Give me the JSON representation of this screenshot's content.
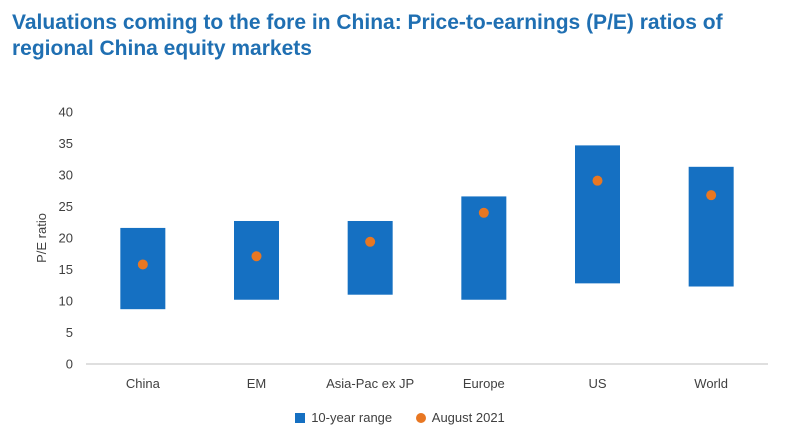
{
  "chart_data": {
    "type": "bar",
    "title": "Valuations coming to the fore in China: Price-to-earnings (P/E) ratios of regional China equity markets",
    "xlabel": "",
    "ylabel": "P/E ratio",
    "ylim": [
      0,
      40
    ],
    "yticks": [
      0,
      5,
      10,
      15,
      20,
      25,
      30,
      35,
      40
    ],
    "categories": [
      "China",
      "EM",
      "Asia-Pac ex JP",
      "Europe",
      "US",
      "World"
    ],
    "series": [
      {
        "name": "10-year range",
        "kind": "floating-range",
        "low": [
          8.7,
          10.2,
          11.0,
          10.2,
          12.8,
          12.3
        ],
        "high": [
          21.6,
          22.7,
          22.7,
          26.6,
          34.7,
          31.3
        ]
      },
      {
        "name": "August 2021",
        "kind": "point",
        "values": [
          15.8,
          17.1,
          19.4,
          24.0,
          29.1,
          26.8
        ]
      }
    ],
    "grid": false,
    "legend_position": "bottom",
    "colors": {
      "range": "#1570c2",
      "point": "#e87722",
      "axis": "#bfbfbf",
      "title": "#1f6fb2"
    }
  }
}
